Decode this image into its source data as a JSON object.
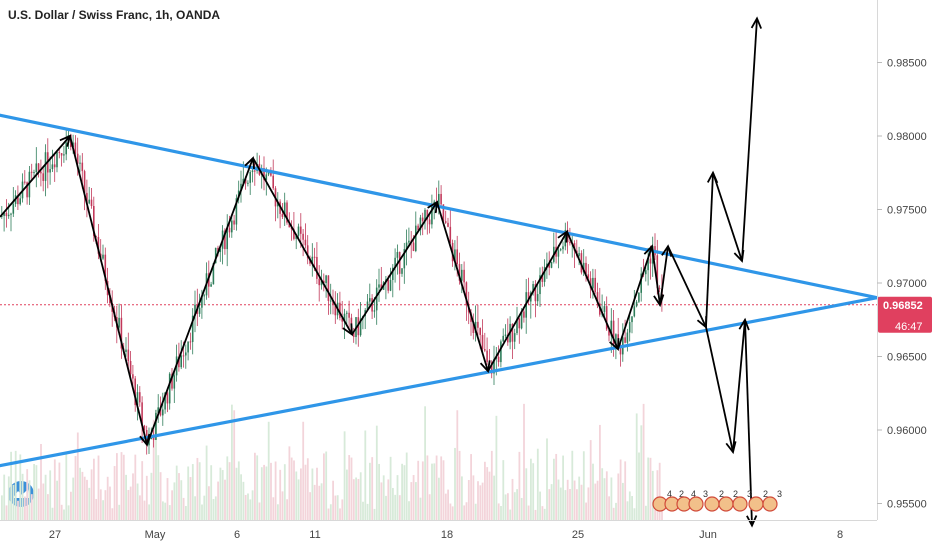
{
  "header": {
    "title": "U.S. Dollar / Swiss Franc, 1h, OANDA"
  },
  "colors": {
    "trendline": "#2f96e8",
    "bull": "#2e7d5a",
    "bear": "#c2385a",
    "last_price_bg": "#e0405f",
    "arrow": "#000000",
    "volume_up": "#d7ead9",
    "volume_down": "#f3d4da"
  },
  "price_axis": {
    "ticks": [
      "0.98500",
      "0.98000",
      "0.97500",
      "0.97000",
      "0.96500",
      "0.96000",
      "0.95500"
    ],
    "last_price": "0.96852",
    "countdown": "46:47"
  },
  "time_axis": {
    "ticks": [
      "27",
      "May",
      "6",
      "11",
      "18",
      "25",
      "Jun",
      "8"
    ]
  },
  "chart_data": {
    "type": "candlestick",
    "symbol": "USDCHF",
    "interval": "1h",
    "y_range": [
      0.9535,
      0.9885
    ],
    "last_price": 0.96852,
    "trendlines": [
      {
        "name": "upper",
        "from": [
          "2020-04-23",
          0.9815
        ],
        "to": [
          "2020-06-09",
          0.969
        ]
      },
      {
        "name": "lower",
        "from": [
          "2020-04-23",
          0.9575
        ],
        "to": [
          "2020-06-09",
          0.969
        ]
      }
    ],
    "swing_path_prices": [
      0.9745,
      0.98,
      0.959,
      0.9785,
      0.9665,
      0.9755,
      0.964,
      0.9735,
      0.9655,
      0.9725,
      0.9685,
      0.9725,
      0.967,
      0.9775,
      0.9715,
      0.988
    ],
    "bearish_scenario_prices": [
      0.967,
      0.9585,
      0.9675,
      0.9535
    ]
  },
  "calendar_badges": [
    "4",
    "2",
    "4",
    "3",
    "2",
    "2",
    "3",
    "2",
    "3"
  ]
}
